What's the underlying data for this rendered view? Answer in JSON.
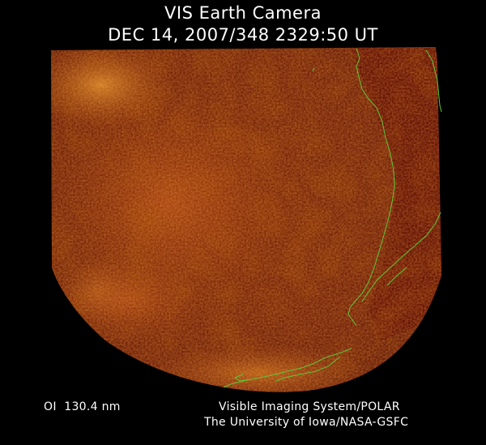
{
  "header": {
    "title": "VIS Earth Camera",
    "timestamp": "DEC 14, 2007/348 2329:50 UT"
  },
  "footer": {
    "wavelength": "OI  130.4 nm",
    "instrument": "Visible Imaging System/POLAR",
    "institution": "The University of Iowa/NASA-GSFC"
  },
  "colors": {
    "background": "#000000",
    "disk_dark": "#5a0d00",
    "disk_mid": "#8a2a05",
    "disk_bright": "#d6781e",
    "coastline": "#5cc83a",
    "text": "#ffffff"
  }
}
